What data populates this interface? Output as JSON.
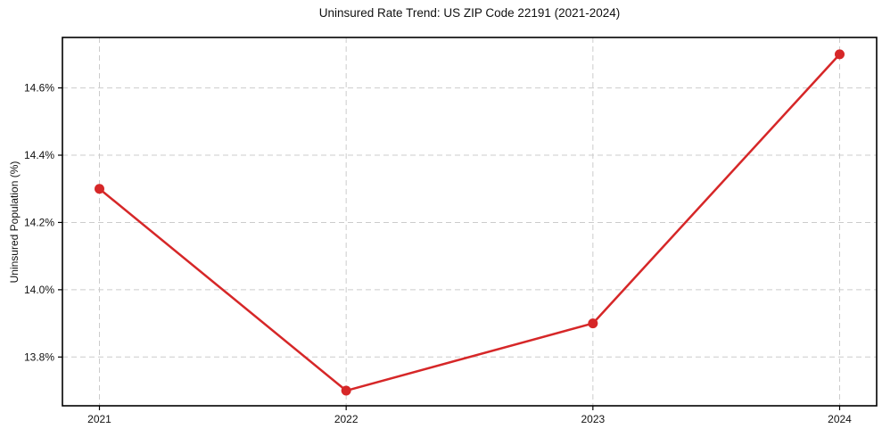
{
  "chart_data": {
    "type": "line",
    "title": "Uninsured Rate Trend: US ZIP Code 22191 (2021-2024)",
    "xlabel": "",
    "ylabel": "Uninsured Population (%)",
    "x": [
      2021,
      2022,
      2023,
      2024
    ],
    "x_tick_labels": [
      "2021",
      "2022",
      "2023",
      "2024"
    ],
    "values": [
      14.3,
      13.7,
      13.9,
      14.7
    ],
    "y_ticks": [
      13.8,
      14.0,
      14.2,
      14.4,
      14.6
    ],
    "y_tick_labels": [
      "13.8%",
      "14.0%",
      "14.2%",
      "14.4%",
      "14.6%"
    ],
    "xlim": [
      2020.85,
      2024.15
    ],
    "ylim": [
      13.655,
      14.75
    ],
    "grid": "dashed-both-axes",
    "legend": "none",
    "line_color": "#d62728",
    "marker": "circle",
    "marker_radius": 5.5,
    "line_width": 2.5,
    "background": "#ffffff",
    "frame_color": "#000000"
  }
}
